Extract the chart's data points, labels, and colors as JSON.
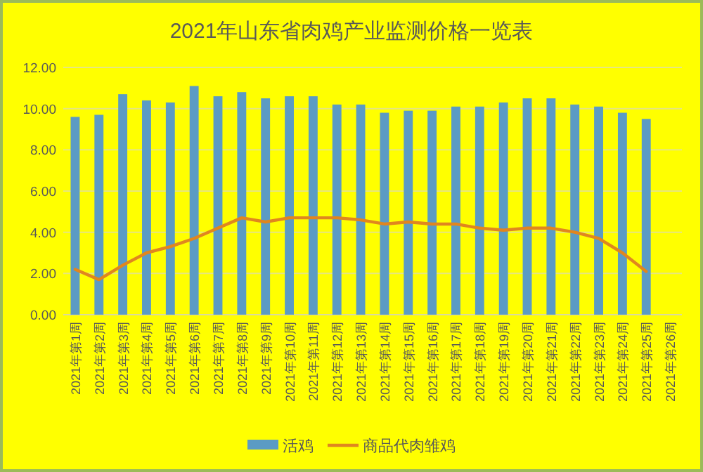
{
  "chart_data": {
    "type": "bar",
    "title": "2021年山东省肉鸡产业监测价格一览表",
    "categories": [
      "2021年第1周",
      "2021年第2周",
      "2021年第3周",
      "2021年第4周",
      "2021年第5周",
      "2021年第6周",
      "2021年第7周",
      "2021年第8周",
      "2021年第9周",
      "2021年第10周",
      "2021年第11周",
      "2021年第12周",
      "2021年第13周",
      "2021年第14周",
      "2021年第15周",
      "2021年第16周",
      "2021年第17周",
      "2021年第18周",
      "2021年第19周",
      "2021年第20周",
      "2021年第21周",
      "2021年第22周",
      "2021年第23周",
      "2021年第24周",
      "2021年第25周",
      "2021年第26周"
    ],
    "series": [
      {
        "name": "活鸡",
        "color": "#5b9bc4",
        "values": [
          9.6,
          9.7,
          10.7,
          10.4,
          10.3,
          11.1,
          10.6,
          10.8,
          10.5,
          10.6,
          10.6,
          10.2,
          10.2,
          9.8,
          9.9,
          9.9,
          10.1,
          10.1,
          10.3,
          10.5,
          10.5,
          10.2,
          10.1,
          9.8,
          9.5,
          null
        ]
      },
      {
        "name": "商品代肉雏鸡",
        "type": "line",
        "color": "#e0861f",
        "values": [
          2.2,
          1.7,
          2.4,
          3.0,
          3.3,
          3.7,
          4.2,
          4.7,
          4.5,
          4.7,
          4.7,
          4.7,
          4.6,
          4.4,
          4.5,
          4.4,
          4.4,
          4.2,
          4.1,
          4.2,
          4.2,
          4.0,
          3.7,
          3.0,
          2.1,
          null
        ]
      }
    ],
    "ylim": [
      0,
      12
    ],
    "yticks": [
      {
        "value": 0,
        "label": "0.00"
      },
      {
        "value": 2,
        "label": "2.00"
      },
      {
        "value": 4,
        "label": "4.00"
      },
      {
        "value": 6,
        "label": "6.00"
      },
      {
        "value": 8,
        "label": "8.00"
      },
      {
        "value": 10,
        "label": "10.00"
      },
      {
        "value": 12,
        "label": "12.00"
      }
    ],
    "grid": "y",
    "legend": "bottom",
    "marker": "none",
    "line_style": "solid"
  }
}
